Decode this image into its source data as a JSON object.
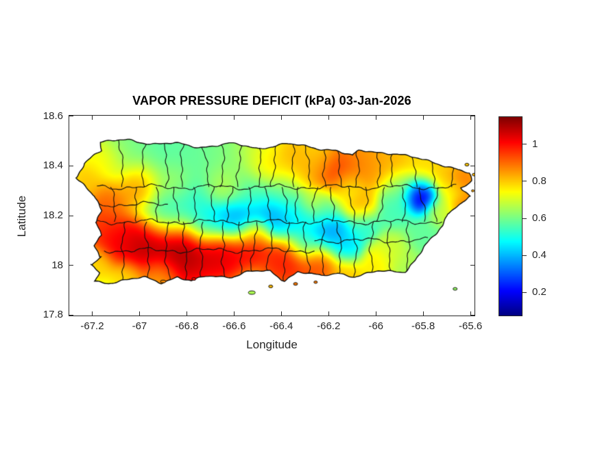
{
  "figure": {
    "title": "VAPOR PRESSURE DEFICIT (kPa) 03-Jan-2026",
    "xlabel": "Longitude",
    "ylabel": "Latitude",
    "background_color": "#ffffff",
    "axis_color": "#262626",
    "boundary_color": "#111111"
  },
  "chart_data": {
    "type": "heatmap",
    "title": "VAPOR PRESSURE DEFICIT (kPa) 03-Jan-2026",
    "region": "Puerto Rico",
    "units": "kPa",
    "date": "03-Jan-2026",
    "xlabel": "Longitude",
    "ylabel": "Latitude",
    "xlim": [
      -67.3,
      -65.58
    ],
    "ylim": [
      17.795,
      18.605
    ],
    "x_ticks": [
      -67.2,
      -67,
      -66.8,
      -66.6,
      -66.4,
      -66.2,
      -66,
      -65.8,
      -65.6
    ],
    "x_tick_labels": [
      "-67.2",
      "-67",
      "-66.8",
      "-66.6",
      "-66.4",
      "-66.2",
      "-66",
      "-65.8",
      "-65.6"
    ],
    "y_ticks": [
      17.8,
      18,
      18.2,
      18.4,
      18.6
    ],
    "y_tick_labels": [
      "17.8",
      "18",
      "18.2",
      "18.4",
      "18.6"
    ],
    "grid": false,
    "colormap": "jet",
    "value_range": [
      0.08,
      1.15
    ],
    "colorbar_ticks": [
      0.2,
      0.4,
      0.6,
      0.8,
      1
    ],
    "colorbar_tick_labels": [
      "0.2",
      "0.4",
      "0.6",
      "0.8",
      "1"
    ],
    "colorbar_position": "right",
    "background_value": 0.64,
    "field_points": [
      [
        -66.95,
        18.43,
        0.57,
        0.1
      ],
      [
        -66.78,
        18.42,
        0.58,
        0.09
      ],
      [
        -66.62,
        18.44,
        0.62,
        0.08
      ],
      [
        -67.05,
        18.47,
        0.63,
        0.06
      ],
      [
        -66.5,
        18.46,
        0.72,
        0.06
      ],
      [
        -66.45,
        18.41,
        0.8,
        0.05
      ],
      [
        -66.35,
        18.42,
        0.85,
        0.06
      ],
      [
        -66.25,
        18.45,
        0.78,
        0.05
      ],
      [
        -66.18,
        18.37,
        1.0,
        0.065
      ],
      [
        -66.28,
        18.38,
        0.82,
        0.05
      ],
      [
        -66.05,
        18.41,
        0.88,
        0.06
      ],
      [
        -65.93,
        18.41,
        0.84,
        0.05
      ],
      [
        -65.8,
        18.39,
        0.8,
        0.05
      ],
      [
        -65.7,
        18.36,
        0.82,
        0.045
      ],
      [
        -65.645,
        18.34,
        0.93,
        0.035
      ],
      [
        -65.63,
        18.25,
        0.9,
        0.035
      ],
      [
        -65.68,
        18.3,
        0.72,
        0.035
      ],
      [
        -67.14,
        18.42,
        0.78,
        0.05
      ],
      [
        -67.22,
        18.34,
        0.82,
        0.04
      ],
      [
        -67.0,
        18.33,
        0.97,
        0.055
      ],
      [
        -67.13,
        18.26,
        0.93,
        0.05
      ],
      [
        -67.16,
        18.16,
        0.98,
        0.05
      ],
      [
        -67.1,
        18.1,
        1.05,
        0.05
      ],
      [
        -67.18,
        18.01,
        0.8,
        0.04
      ],
      [
        -66.97,
        18.07,
        1.12,
        0.07
      ],
      [
        -66.82,
        18.06,
        1.14,
        0.075
      ],
      [
        -66.66,
        18.05,
        1.08,
        0.06
      ],
      [
        -66.53,
        18.09,
        1.06,
        0.05
      ],
      [
        -66.51,
        18.135,
        0.95,
        0.035
      ],
      [
        -66.38,
        18.03,
        1.02,
        0.06
      ],
      [
        -66.24,
        18.01,
        0.96,
        0.05
      ],
      [
        -66.12,
        17.97,
        0.82,
        0.04
      ],
      [
        -66.92,
        17.96,
        0.82,
        0.045
      ],
      [
        -67.05,
        17.95,
        0.78,
        0.04
      ],
      [
        -66.88,
        18.21,
        0.52,
        0.06
      ],
      [
        -66.78,
        18.26,
        0.5,
        0.06
      ],
      [
        -66.72,
        18.17,
        0.44,
        0.05
      ],
      [
        -66.62,
        18.18,
        0.36,
        0.05
      ],
      [
        -66.54,
        18.17,
        0.3,
        0.045
      ],
      [
        -66.45,
        18.19,
        0.33,
        0.05
      ],
      [
        -66.36,
        18.17,
        0.42,
        0.05
      ],
      [
        -66.52,
        18.28,
        0.55,
        0.06
      ],
      [
        -66.38,
        18.3,
        0.58,
        0.055
      ],
      [
        -66.27,
        18.255,
        0.76,
        0.03
      ],
      [
        -66.3,
        18.22,
        0.52,
        0.045
      ],
      [
        -66.22,
        18.24,
        0.55,
        0.045
      ],
      [
        -66.2,
        18.12,
        0.35,
        0.05
      ],
      [
        -66.12,
        18.07,
        0.44,
        0.04
      ],
      [
        -66.3,
        18.09,
        0.47,
        0.04
      ],
      [
        -66.05,
        18.16,
        0.52,
        0.04
      ],
      [
        -66.85,
        18.33,
        0.7,
        0.05
      ],
      [
        -66.65,
        18.32,
        0.7,
        0.05
      ],
      [
        -65.81,
        18.285,
        0.12,
        0.042
      ],
      [
        -65.9,
        18.32,
        0.62,
        0.04
      ],
      [
        -65.92,
        18.22,
        0.55,
        0.045
      ],
      [
        -66.06,
        18.24,
        0.85,
        0.038
      ],
      [
        -66.12,
        18.31,
        0.72,
        0.04
      ],
      [
        -65.93,
        18.06,
        0.7,
        0.045
      ],
      [
        -65.8,
        18.12,
        0.58,
        0.045
      ],
      [
        -65.86,
        17.99,
        0.66,
        0.04
      ],
      [
        -66.0,
        18.01,
        0.78,
        0.04
      ],
      [
        -65.73,
        18.22,
        0.7,
        0.035
      ]
    ],
    "outline": [
      [
        -67.165,
        18.495
      ],
      [
        -67.05,
        18.505
      ],
      [
        -66.95,
        18.49
      ],
      [
        -66.85,
        18.49
      ],
      [
        -66.75,
        18.475
      ],
      [
        -66.62,
        18.49
      ],
      [
        -66.5,
        18.47
      ],
      [
        -66.38,
        18.49
      ],
      [
        -66.25,
        18.47
      ],
      [
        -66.17,
        18.465
      ],
      [
        -66.1,
        18.44
      ],
      [
        -66.07,
        18.46
      ],
      [
        -65.99,
        18.455
      ],
      [
        -65.91,
        18.45
      ],
      [
        -65.83,
        18.43
      ],
      [
        -65.74,
        18.41
      ],
      [
        -65.66,
        18.39
      ],
      [
        -65.605,
        18.37
      ],
      [
        -65.6,
        18.34
      ],
      [
        -65.64,
        18.31
      ],
      [
        -65.6,
        18.28
      ],
      [
        -65.635,
        18.245
      ],
      [
        -65.7,
        18.21
      ],
      [
        -65.72,
        18.16
      ],
      [
        -65.77,
        18.1
      ],
      [
        -65.835,
        18.02
      ],
      [
        -65.88,
        17.975
      ],
      [
        -65.99,
        17.975
      ],
      [
        -66.09,
        17.955
      ],
      [
        -66.16,
        17.97
      ],
      [
        -66.23,
        17.955
      ],
      [
        -66.33,
        17.975
      ],
      [
        -66.39,
        17.94
      ],
      [
        -66.45,
        17.975
      ],
      [
        -66.54,
        17.975
      ],
      [
        -66.61,
        17.955
      ],
      [
        -66.72,
        17.955
      ],
      [
        -66.78,
        17.935
      ],
      [
        -66.84,
        17.955
      ],
      [
        -66.91,
        17.93
      ],
      [
        -66.98,
        17.95
      ],
      [
        -67.07,
        17.94
      ],
      [
        -67.13,
        17.93
      ],
      [
        -67.19,
        17.935
      ],
      [
        -67.17,
        17.97
      ],
      [
        -67.21,
        18.0
      ],
      [
        -67.16,
        18.03
      ],
      [
        -67.19,
        18.08
      ],
      [
        -67.16,
        18.12
      ],
      [
        -67.19,
        18.17
      ],
      [
        -67.16,
        18.22
      ],
      [
        -67.185,
        18.28
      ],
      [
        -67.27,
        18.35
      ],
      [
        -67.235,
        18.41
      ],
      [
        -67.16,
        18.46
      ]
    ],
    "islets": [
      [
        -66.9,
        17.935,
        4,
        2
      ],
      [
        -66.77,
        17.945,
        3,
        2
      ],
      [
        -66.525,
        17.89,
        5,
        2.5
      ],
      [
        -66.445,
        17.915,
        3,
        2
      ],
      [
        -66.34,
        17.925,
        3,
        2
      ],
      [
        -66.255,
        17.932,
        2.5,
        1.8
      ],
      [
        -65.665,
        17.905,
        3,
        2
      ],
      [
        -65.615,
        18.405,
        3,
        2
      ],
      [
        -65.585,
        18.365,
        2.5,
        2
      ],
      [
        -65.575,
        18.33,
        2.5,
        2
      ],
      [
        -65.59,
        18.3,
        2,
        1.5
      ]
    ],
    "boundaries": {
      "horizontal_lines": [
        {
          "lat": 18.315,
          "from": -67.18,
          "to": -65.66
        },
        {
          "lat": 18.175,
          "from": -67.2,
          "to": -65.72
        },
        {
          "lat": 18.06,
          "from": -67.15,
          "to": -66.26
        },
        {
          "lat": 18.245,
          "from": -67.26,
          "to": -66.88
        },
        {
          "lat": 18.1,
          "from": -66.26,
          "to": -65.78
        }
      ],
      "vertical_rows": [
        {
          "from": 18.52,
          "to": 18.315,
          "lons": [
            -67.08,
            -66.98,
            -66.89,
            -66.81,
            -66.73,
            -66.65,
            -66.575,
            -66.5,
            -66.43,
            -66.36,
            -66.29,
            -66.22,
            -66.15,
            -66.08,
            -66.0,
            -65.92,
            -65.84,
            -65.76,
            -65.68
          ]
        },
        {
          "from": 18.315,
          "to": 18.175,
          "lons": [
            -67.12,
            -67.02,
            -66.93,
            -66.85,
            -66.77,
            -66.69,
            -66.61,
            -66.535,
            -66.465,
            -66.395,
            -66.325,
            -66.255,
            -66.185,
            -66.115,
            -66.045,
            -65.97,
            -65.89,
            -65.81,
            -65.74
          ]
        },
        {
          "from": 18.175,
          "to": 17.92,
          "lons": [
            -67.06,
            -66.97,
            -66.89,
            -66.81,
            -66.73,
            -66.655,
            -66.58,
            -66.51,
            -66.44,
            -66.37,
            -66.3,
            -66.23,
            -66.16,
            -66.09,
            -66.015,
            -65.94,
            -65.86
          ]
        }
      ]
    }
  }
}
